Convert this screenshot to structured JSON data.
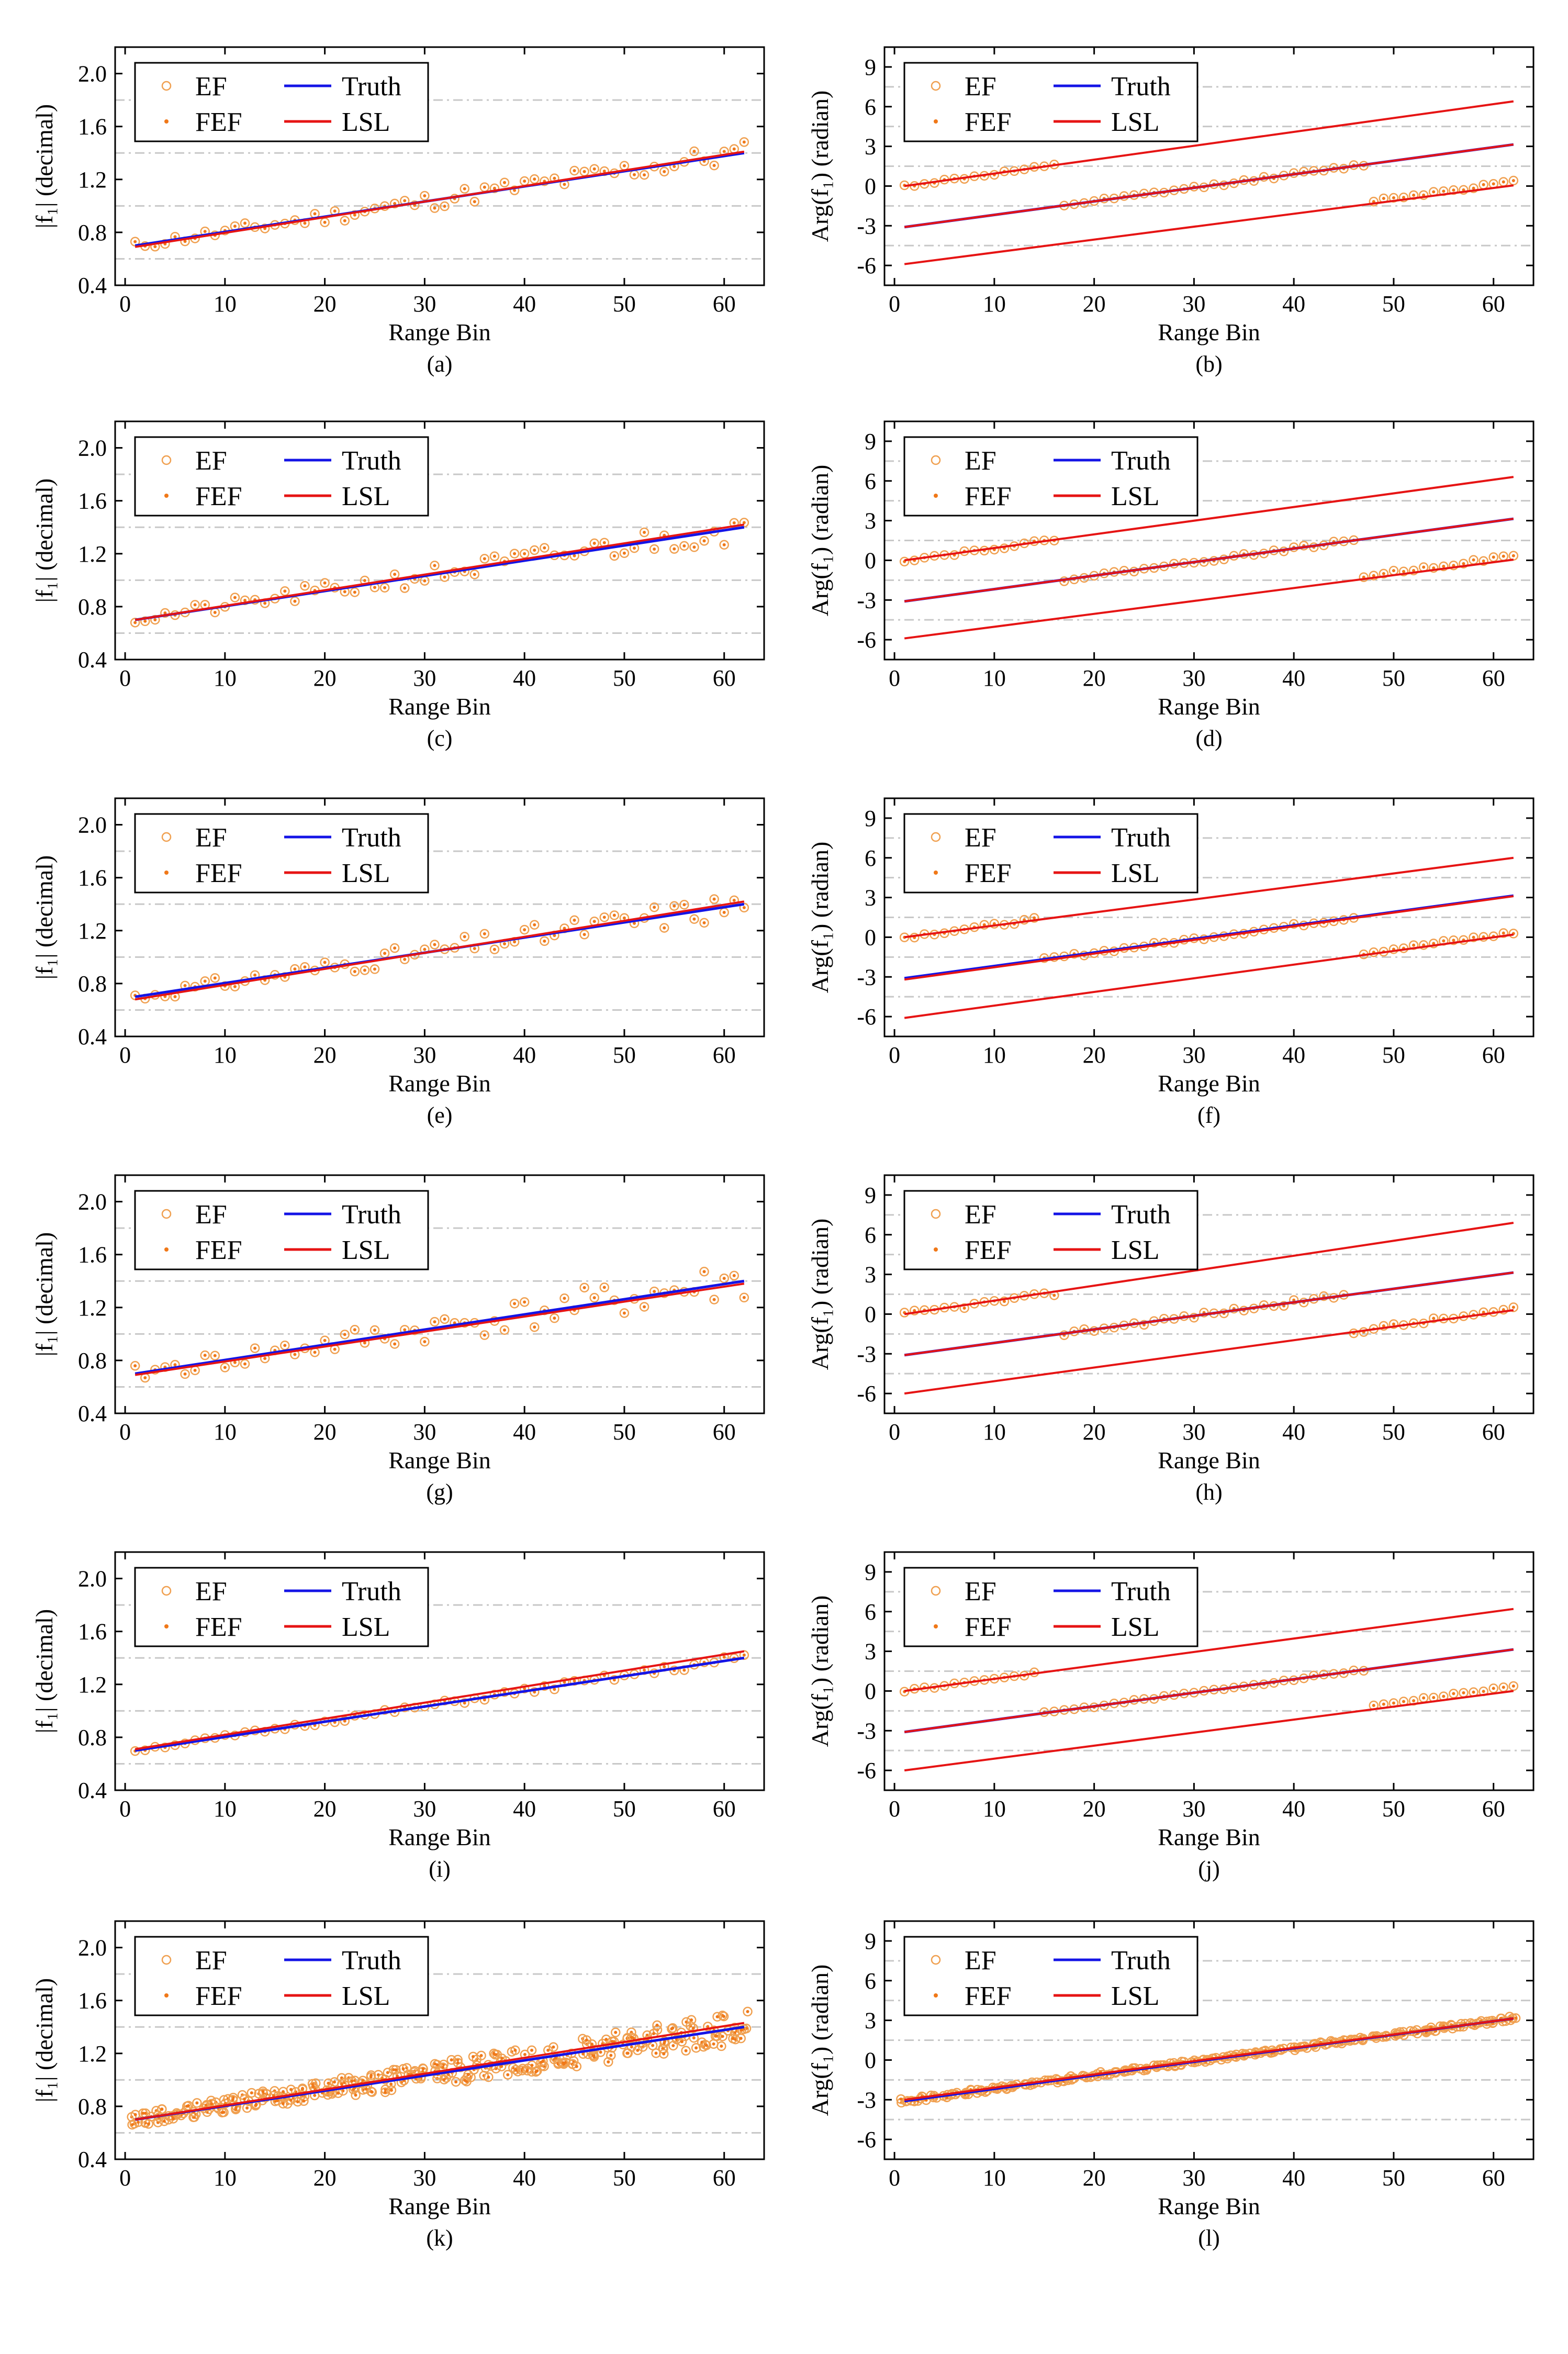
{
  "colors": {
    "ef": "#f0a050",
    "fef": "#f07818",
    "truth": "#1414e6",
    "lsl": "#e61414",
    "grid": "#c8c8c8",
    "axis": "#000000"
  },
  "legend": {
    "ef": "EF",
    "fef": "FEF",
    "truth": "Truth",
    "lsl": "LSL"
  },
  "chart_data": [
    {
      "id": "a",
      "caption": "(a)",
      "kind": "mag",
      "type": "scatter",
      "xlabel": "Range Bin",
      "ylabel": "|f₁| (decimal)",
      "xlim": [
        -1,
        64
      ],
      "ylim": [
        0.4,
        2.2
      ],
      "xticks": [
        0,
        10,
        20,
        30,
        40,
        50,
        60
      ],
      "yticks": [
        0.4,
        0.8,
        1.2,
        1.6,
        2.0
      ],
      "grid_y": [
        0.6,
        1.0,
        1.4,
        1.8
      ],
      "truth": [
        [
          1,
          0.7
        ],
        [
          62,
          1.4
        ]
      ],
      "lsl": [
        [
          [
            1,
            0.69
          ],
          [
            62,
            1.41
          ]
        ]
      ],
      "noise": 0.06,
      "seed": 11
    },
    {
      "id": "b",
      "caption": "(b)",
      "kind": "phase",
      "type": "scatter",
      "xlabel": "Range Bin",
      "ylabel": "Arg(f₁) (radian)",
      "xlim": [
        -1,
        64
      ],
      "ylim": [
        -7.5,
        10.5
      ],
      "xticks": [
        0,
        10,
        20,
        30,
        40,
        50,
        60
      ],
      "yticks": [
        -6,
        -3,
        0,
        3,
        6,
        9
      ],
      "grid_y": [
        -4.5,
        -1.5,
        1.5,
        4.5,
        7.5
      ],
      "truth": [
        [
          1,
          -3.1
        ],
        [
          62,
          3.14
        ]
      ],
      "lsl": [
        [
          [
            1,
            0.0
          ],
          [
            62,
            6.4
          ]
        ],
        [
          [
            1,
            -3.1
          ],
          [
            62,
            3.14
          ]
        ],
        [
          [
            1,
            -5.9
          ],
          [
            62,
            0.05
          ]
        ]
      ],
      "bands": [
        [
          1,
          17,
          0.0
        ],
        [
          17,
          48,
          -3.1
        ],
        [
          48,
          62,
          -5.9
        ]
      ],
      "noise": 0.12,
      "seed": 12
    },
    {
      "id": "c",
      "caption": "(c)",
      "kind": "mag",
      "type": "scatter",
      "xlabel": "Range Bin",
      "ylabel": "|f₁| (decimal)",
      "xlim": [
        -1,
        64
      ],
      "ylim": [
        0.4,
        2.2
      ],
      "xticks": [
        0,
        10,
        20,
        30,
        40,
        50,
        60
      ],
      "yticks": [
        0.4,
        0.8,
        1.2,
        1.6,
        2.0
      ],
      "grid_y": [
        0.6,
        1.0,
        1.4,
        1.8
      ],
      "truth": [
        [
          1,
          0.7
        ],
        [
          62,
          1.4
        ]
      ],
      "lsl": [
        [
          [
            1,
            0.7
          ],
          [
            62,
            1.42
          ]
        ]
      ],
      "noise": 0.07,
      "seed": 21
    },
    {
      "id": "d",
      "caption": "(d)",
      "kind": "phase",
      "type": "scatter",
      "xlabel": "Range Bin",
      "ylabel": "Arg(f₁) (radian)",
      "xlim": [
        -1,
        64
      ],
      "ylim": [
        -7.5,
        10.5
      ],
      "xticks": [
        0,
        10,
        20,
        30,
        40,
        50,
        60
      ],
      "yticks": [
        -6,
        -3,
        0,
        3,
        6,
        9
      ],
      "grid_y": [
        -4.5,
        -1.5,
        1.5,
        4.5,
        7.5
      ],
      "truth": [
        [
          1,
          -3.1
        ],
        [
          62,
          3.14
        ]
      ],
      "lsl": [
        [
          [
            1,
            0.0
          ],
          [
            62,
            6.3
          ]
        ],
        [
          [
            1,
            -3.1
          ],
          [
            62,
            3.14
          ]
        ],
        [
          [
            1,
            -5.9
          ],
          [
            62,
            0.05
          ]
        ]
      ],
      "bands": [
        [
          1,
          17,
          0.0
        ],
        [
          17,
          47,
          -3.1
        ],
        [
          47,
          62,
          -5.9
        ]
      ],
      "noise": 0.12,
      "seed": 22
    },
    {
      "id": "e",
      "caption": "(e)",
      "kind": "mag",
      "type": "scatter",
      "xlabel": "Range Bin",
      "ylabel": "|f₁| (decimal)",
      "xlim": [
        -1,
        64
      ],
      "ylim": [
        0.4,
        2.2
      ],
      "xticks": [
        0,
        10,
        20,
        30,
        40,
        50,
        60
      ],
      "yticks": [
        0.4,
        0.8,
        1.2,
        1.6,
        2.0
      ],
      "grid_y": [
        0.6,
        1.0,
        1.4,
        1.8
      ],
      "truth": [
        [
          1,
          0.7
        ],
        [
          62,
          1.4
        ]
      ],
      "lsl": [
        [
          [
            1,
            0.68
          ],
          [
            62,
            1.42
          ]
        ]
      ],
      "noise": 0.07,
      "seed": 31
    },
    {
      "id": "f",
      "caption": "(f)",
      "kind": "phase",
      "type": "scatter",
      "xlabel": "Range Bin",
      "ylabel": "Arg(f₁) (radian)",
      "xlim": [
        -1,
        64
      ],
      "ylim": [
        -7.5,
        10.5
      ],
      "xticks": [
        0,
        10,
        20,
        30,
        40,
        50,
        60
      ],
      "yticks": [
        -6,
        -3,
        0,
        3,
        6,
        9
      ],
      "grid_y": [
        -4.5,
        -1.5,
        1.5,
        4.5,
        7.5
      ],
      "truth": [
        [
          1,
          -3.1
        ],
        [
          62,
          3.14
        ]
      ],
      "lsl": [
        [
          [
            1,
            0.0
          ],
          [
            62,
            6.0
          ]
        ],
        [
          [
            1,
            -3.2
          ],
          [
            62,
            3.1
          ]
        ],
        [
          [
            1,
            -6.1
          ],
          [
            62,
            0.2
          ]
        ]
      ],
      "bands": [
        [
          1,
          15,
          0.0
        ],
        [
          15,
          47,
          -3.1
        ],
        [
          47,
          62,
          -5.9
        ]
      ],
      "noise": 0.13,
      "seed": 32
    },
    {
      "id": "g",
      "caption": "(g)",
      "kind": "mag",
      "type": "scatter",
      "xlabel": "Range Bin",
      "ylabel": "|f₁| (decimal)",
      "xlim": [
        -1,
        64
      ],
      "ylim": [
        0.4,
        2.2
      ],
      "xticks": [
        0,
        10,
        20,
        30,
        40,
        50,
        60
      ],
      "yticks": [
        0.4,
        0.8,
        1.2,
        1.6,
        2.0
      ],
      "grid_y": [
        0.6,
        1.0,
        1.4,
        1.8
      ],
      "truth": [
        [
          1,
          0.7
        ],
        [
          62,
          1.4
        ]
      ],
      "lsl": [
        [
          [
            1,
            0.69
          ],
          [
            62,
            1.38
          ]
        ]
      ],
      "noise": 0.1,
      "seed": 41
    },
    {
      "id": "h",
      "caption": "(h)",
      "kind": "phase",
      "type": "scatter",
      "xlabel": "Range Bin",
      "ylabel": "Arg(f₁) (radian)",
      "xlim": [
        -1,
        64
      ],
      "ylim": [
        -7.5,
        10.5
      ],
      "xticks": [
        0,
        10,
        20,
        30,
        40,
        50,
        60
      ],
      "yticks": [
        -6,
        -3,
        0,
        3,
        6,
        9
      ],
      "grid_y": [
        -4.5,
        -1.5,
        1.5,
        4.5,
        7.5
      ],
      "truth": [
        [
          1,
          -3.1
        ],
        [
          62,
          3.14
        ]
      ],
      "lsl": [
        [
          [
            1,
            0.0
          ],
          [
            62,
            6.9
          ]
        ],
        [
          [
            1,
            -3.1
          ],
          [
            62,
            3.14
          ]
        ],
        [
          [
            1,
            -6.0
          ],
          [
            62,
            0.3
          ]
        ]
      ],
      "bands": [
        [
          1,
          17,
          0.0
        ],
        [
          17,
          46,
          -3.1
        ],
        [
          46,
          62,
          -5.9
        ]
      ],
      "noise": 0.18,
      "seed": 42
    },
    {
      "id": "i",
      "caption": "(i)",
      "kind": "mag",
      "type": "scatter",
      "xlabel": "Range Bin",
      "ylabel": "|f₁| (decimal)",
      "xlim": [
        -1,
        64
      ],
      "ylim": [
        0.4,
        2.2
      ],
      "xticks": [
        0,
        10,
        20,
        30,
        40,
        50,
        60
      ],
      "yticks": [
        0.4,
        0.8,
        1.2,
        1.6,
        2.0
      ],
      "grid_y": [
        0.6,
        1.0,
        1.4,
        1.8
      ],
      "truth": [
        [
          1,
          0.7
        ],
        [
          62,
          1.4
        ]
      ],
      "lsl": [
        [
          [
            1,
            0.71
          ],
          [
            62,
            1.45
          ]
        ]
      ],
      "noise": 0.02,
      "seed": 51
    },
    {
      "id": "j",
      "caption": "(j)",
      "kind": "phase",
      "type": "scatter",
      "xlabel": "Range Bin",
      "ylabel": "Arg(f₁) (radian)",
      "xlim": [
        -1,
        64
      ],
      "ylim": [
        -7.5,
        10.5
      ],
      "xticks": [
        0,
        10,
        20,
        30,
        40,
        50,
        60
      ],
      "yticks": [
        -6,
        -3,
        0,
        3,
        6,
        9
      ],
      "grid_y": [
        -4.5,
        -1.5,
        1.5,
        4.5,
        7.5
      ],
      "truth": [
        [
          1,
          -3.1
        ],
        [
          62,
          3.14
        ]
      ],
      "lsl": [
        [
          [
            1,
            0.0
          ],
          [
            62,
            6.2
          ]
        ],
        [
          [
            1,
            -3.1
          ],
          [
            62,
            3.14
          ]
        ],
        [
          [
            1,
            -6.0
          ],
          [
            62,
            0.0
          ]
        ]
      ],
      "bands": [
        [
          1,
          15,
          0.0
        ],
        [
          15,
          48,
          -3.1
        ],
        [
          48,
          62,
          -5.9
        ]
      ],
      "noise": 0.08,
      "seed": 52
    },
    {
      "id": "k",
      "caption": "(k)",
      "kind": "mag",
      "type": "scatter",
      "xlabel": "Range Bin",
      "ylabel": "|f₁| (decimal)",
      "xlim": [
        -1,
        64
      ],
      "ylim": [
        0.4,
        2.2
      ],
      "xticks": [
        0,
        10,
        20,
        30,
        40,
        50,
        60
      ],
      "yticks": [
        0.4,
        0.8,
        1.2,
        1.6,
        2.0
      ],
      "grid_y": [
        0.6,
        1.0,
        1.4,
        1.8
      ],
      "truth": [
        [
          1,
          0.7
        ],
        [
          62,
          1.4
        ]
      ],
      "lsl": [
        [
          [
            1,
            0.7
          ],
          [
            62,
            1.43
          ]
        ]
      ],
      "noise": 0.08,
      "seed": 61,
      "multi": 5
    },
    {
      "id": "l",
      "caption": "(l)",
      "kind": "phase",
      "type": "scatter",
      "xlabel": "Range Bin",
      "ylabel": "Arg(f₁) (radian)",
      "xlim": [
        -1,
        64
      ],
      "ylim": [
        -7.5,
        10.5
      ],
      "xticks": [
        0,
        10,
        20,
        30,
        40,
        50,
        60
      ],
      "yticks": [
        -6,
        -3,
        0,
        3,
        6,
        9
      ],
      "grid_y": [
        -4.5,
        -1.5,
        1.5,
        4.5,
        7.5
      ],
      "truth": [
        [
          1,
          -3.1
        ],
        [
          62,
          3.14
        ]
      ],
      "lsl": [
        [
          [
            1,
            -3.0
          ],
          [
            62,
            3.14
          ]
        ]
      ],
      "bands": [
        [
          1,
          62,
          -3.1
        ]
      ],
      "noise": 0.15,
      "seed": 62,
      "multi": 4
    }
  ]
}
